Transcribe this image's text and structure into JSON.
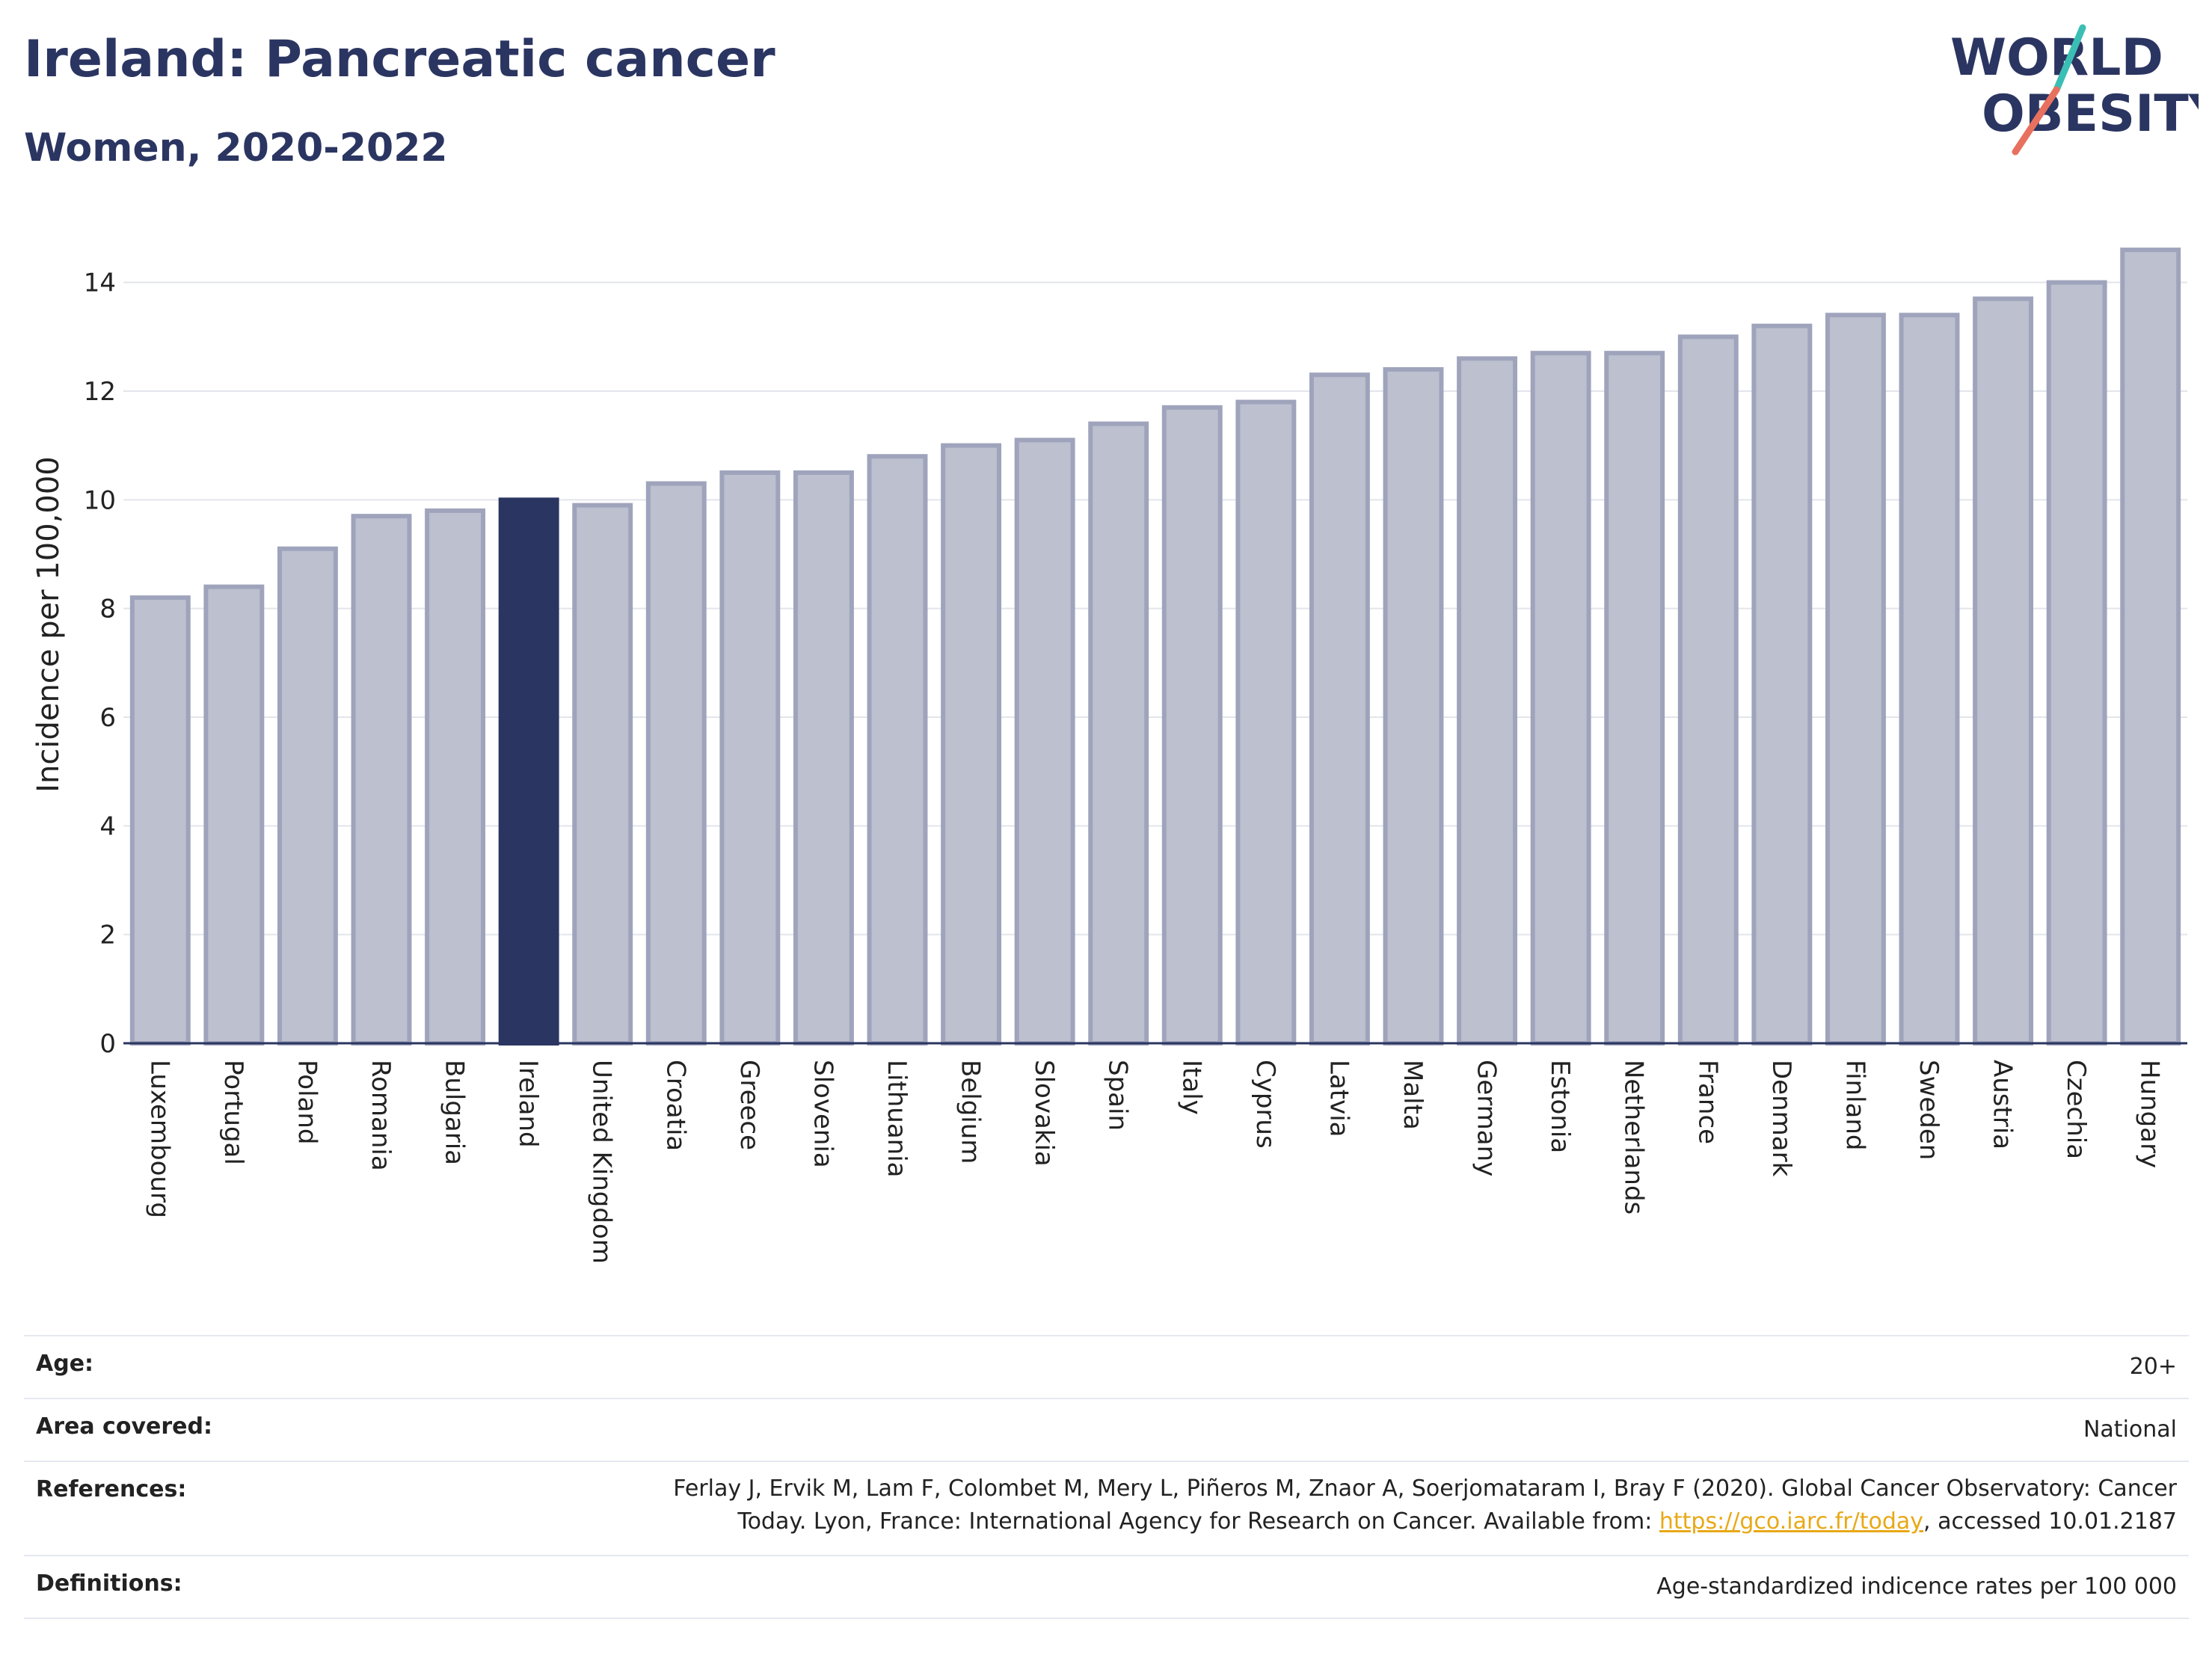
{
  "header": {
    "title": "Ireland: Pancreatic cancer",
    "subtitle": "Women, 2020-2022"
  },
  "logo": {
    "line1": "WORLD",
    "line2": "OBESITY",
    "colors": {
      "text": "#2b3561",
      "teal": "#3bbfb4",
      "coral": "#e8705f"
    }
  },
  "chart_data": {
    "type": "bar",
    "ylabel": "Incidence per 100,000",
    "ylim": [
      0,
      15
    ],
    "yticks": [
      0,
      2,
      4,
      6,
      8,
      10,
      12,
      14
    ],
    "grid": true,
    "categories": [
      "Luxembourg",
      "Portugal",
      "Poland",
      "Romania",
      "Bulgaria",
      "Ireland",
      "United Kingdom",
      "Croatia",
      "Greece",
      "Slovenia",
      "Lithuania",
      "Belgium",
      "Slovakia",
      "Spain",
      "Italy",
      "Cyprus",
      "Latvia",
      "Malta",
      "Germany",
      "Estonia",
      "Netherlands",
      "France",
      "Denmark",
      "Finland",
      "Sweden",
      "Austria",
      "Czechia",
      "Hungary"
    ],
    "values": [
      8.2,
      8.4,
      9.1,
      9.7,
      9.8,
      10.0,
      9.9,
      10.3,
      10.5,
      10.5,
      10.8,
      11.0,
      11.1,
      11.4,
      11.7,
      11.8,
      12.3,
      12.4,
      12.6,
      12.7,
      12.7,
      13.0,
      13.2,
      13.4,
      13.4,
      13.7,
      14.0,
      14.6
    ],
    "highlight": "Ireland",
    "colors": {
      "bar": "#bcc0cf",
      "bar_edge": "#9fa4bc",
      "highlight": "#2b3561"
    }
  },
  "info": {
    "age_label": "Age:",
    "age_value": "20+",
    "area_label": "Area covered:",
    "area_value": "National",
    "references_label": "References:",
    "references_line1": "Ferlay J, Ervik M, Lam F, Colombet M, Mery L, Piñeros M, Znaor A, Soerjomataram I, Bray F (2020). Global Cancer Observatory: Cancer",
    "references_line2_pre": "Today. Lyon, France: International Agency for Research on Cancer. Available from: ",
    "references_link": "https://gco.iarc.fr/today",
    "references_line2_post": ", accessed 10.01.2187",
    "definitions_label": "Definitions:",
    "definitions_value": "Age-standardized indicence rates per 100 000"
  }
}
